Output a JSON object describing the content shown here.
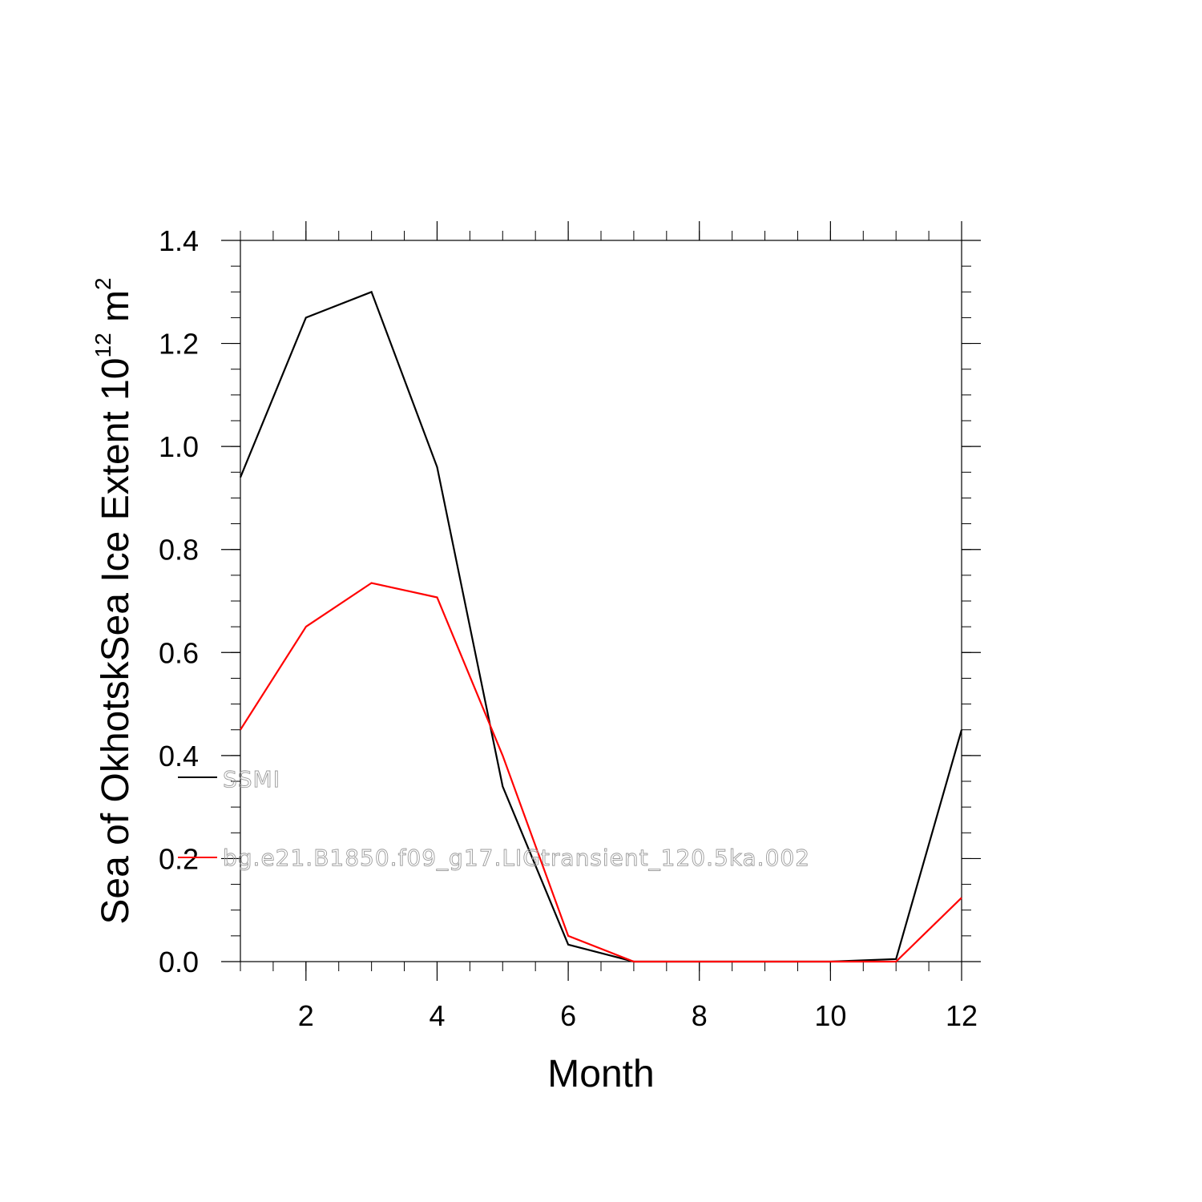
{
  "chart_data": {
    "type": "line",
    "xlabel": "Month",
    "ylabel": {
      "prefix": "Sea of OkhotskSea Ice Extent 10",
      "exponent": "12",
      "unit": " m",
      "unit_exponent": "2"
    },
    "xlim": [
      1,
      12
    ],
    "ylim": [
      0,
      1.4
    ],
    "x_ticks": [
      "2",
      "4",
      "6",
      "8",
      "10",
      "12"
    ],
    "x_tick_values": [
      2,
      4,
      6,
      8,
      10,
      12
    ],
    "y_ticks": [
      "0.0",
      "0.2",
      "0.4",
      "0.6",
      "0.8",
      "1.0",
      "1.2",
      "1.4"
    ],
    "y_tick_values": [
      0,
      0.2,
      0.4,
      0.6,
      0.8,
      1.0,
      1.2,
      1.4
    ],
    "x": [
      1,
      2,
      3,
      4,
      5,
      6,
      7,
      8,
      9,
      10,
      11,
      12
    ],
    "grid": false,
    "legend_placement": "left, overlapping plot",
    "series": [
      {
        "name": "SSMI",
        "color": "#000000",
        "values": [
          0.94,
          1.25,
          1.3,
          0.96,
          0.34,
          0.033,
          0.0,
          0.0,
          0.0,
          0.0,
          0.005,
          0.45
        ]
      },
      {
        "name": "bg.e21.B1850.f09_g17.LIGtransient_120.5ka.002",
        "color": "#ff0000",
        "values": [
          0.45,
          0.65,
          0.735,
          0.707,
          0.4,
          0.05,
          0.0,
          0.0,
          0.0,
          0.0,
          0.0,
          0.124
        ]
      }
    ]
  }
}
